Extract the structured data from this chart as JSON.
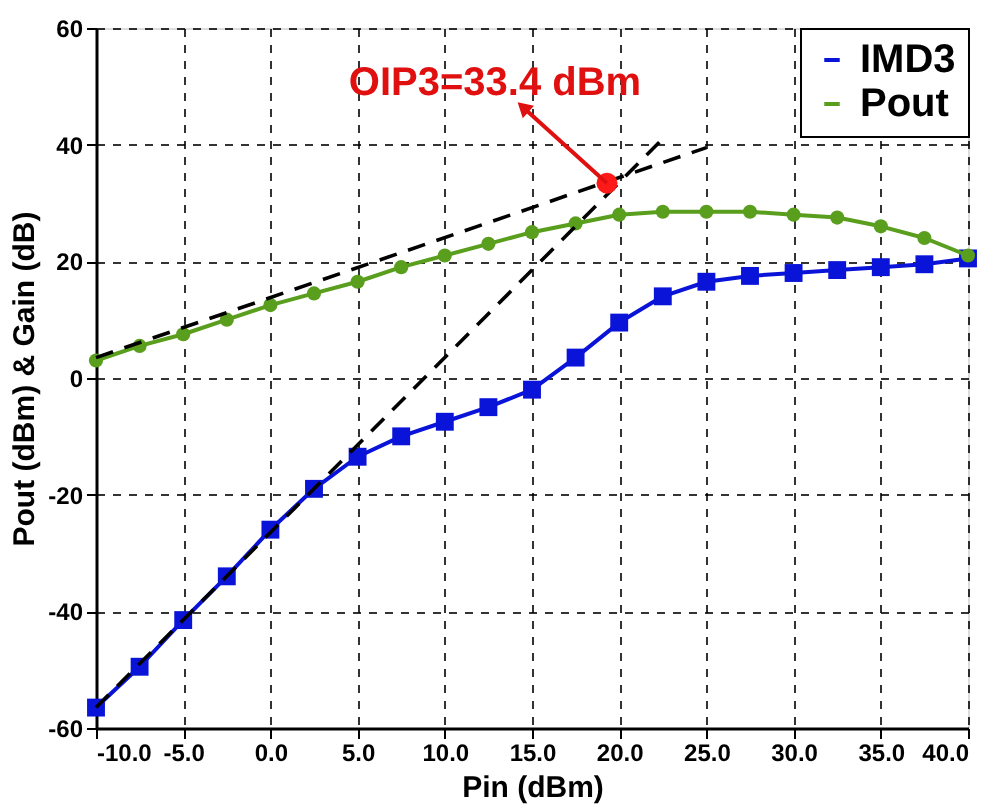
{
  "chart_data": {
    "type": "line",
    "xlabel": "Pin (dBm)",
    "ylabel": "Pout (dBm) & Gain (dB)",
    "x": [
      -10,
      -7.5,
      -5,
      -2.5,
      0,
      2.5,
      5,
      7.5,
      10,
      12.5,
      15,
      17.5,
      20,
      22.5,
      25,
      27.5,
      30,
      32.5,
      35,
      37.5,
      40
    ],
    "series": [
      {
        "name": "IMD3",
        "color": "#0a14d8",
        "marker": "square",
        "line_style": "solid",
        "values": [
          -56.5,
          -49.5,
          -41.5,
          -34,
          -26,
          -19,
          -13.5,
          -10,
          -7.5,
          -5,
          -2,
          3.5,
          9.5,
          14,
          16.5,
          17.5,
          18,
          18.5,
          19,
          19.5,
          20.5
        ]
      },
      {
        "name": "Pout",
        "color": "#5a9e1e",
        "marker": "circle",
        "line_style": "solid",
        "values": [
          3,
          5.5,
          7.5,
          10,
          12.5,
          14.5,
          16.5,
          19,
          21,
          23,
          25,
          26.5,
          28,
          28.5,
          28.5,
          28.5,
          28,
          27.5,
          26,
          24,
          21
        ]
      },
      {
        "type": "line",
        "color": "#000000",
        "line_style": "dashed",
        "marker": "none",
        "x": [
          -10,
          25
        ],
        "values": [
          3.5,
          39.5
        ]
      },
      {
        "type": "line",
        "color": "#000000",
        "line_style": "dashed",
        "marker": "none",
        "x": [
          -10,
          22.5
        ],
        "values": [
          -56.5,
          41
        ]
      },
      {
        "type": "scatter",
        "color": "#ff1a1a",
        "marker": "circle",
        "x": [
          19.3
        ],
        "values": [
          33.4
        ]
      }
    ],
    "annotations": [
      {
        "text": "OIP3=33.4 dBm",
        "x": 19.3,
        "y": 33.4
      }
    ],
    "xlim": [
      -10,
      40
    ],
    "ylim": [
      -60,
      60
    ],
    "xticks": [
      {
        "value": -10,
        "label": "-10.0"
      },
      {
        "value": -5,
        "label": "-5.0"
      },
      {
        "value": 0,
        "label": "0.0"
      },
      {
        "value": 5,
        "label": "5.0"
      },
      {
        "value": 10,
        "label": "10.0"
      },
      {
        "value": 15,
        "label": "15.0"
      },
      {
        "value": 20,
        "label": "20.0"
      },
      {
        "value": 25,
        "label": "25.0"
      },
      {
        "value": 30,
        "label": "30.0"
      },
      {
        "value": 35,
        "label": "35.0"
      },
      {
        "value": 40,
        "label": "40.0"
      }
    ],
    "yticks": [
      -60,
      -40,
      -20,
      0,
      20,
      40,
      60
    ],
    "grid": true,
    "legend": "top right"
  }
}
